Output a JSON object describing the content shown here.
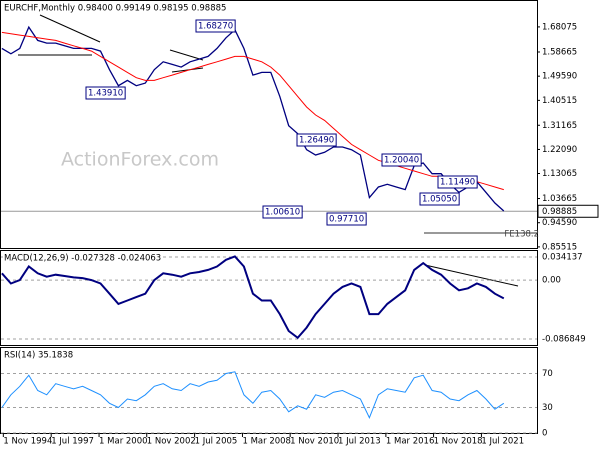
{
  "chart_data": [
    {
      "type": "line",
      "title": "EURCHF,Monthly 0.98400 0.99149 0.98195 0.98885",
      "watermark": "ActionForex.com",
      "x": [
        1994.75,
        1995.25,
        1995.75,
        1996.25,
        1996.75,
        1997.25,
        1997.75,
        1998.25,
        1998.75,
        1999.25,
        1999.75,
        2000.25,
        2000.75,
        2001.25,
        2001.75,
        2002.25,
        2002.75,
        2003.25,
        2003.75,
        2004.25,
        2004.75,
        2005.25,
        2005.75,
        2006.25,
        2006.75,
        2007.25,
        2007.75,
        2008.25,
        2008.75,
        2009.25,
        2009.75,
        2010.25,
        2010.75,
        2011.25,
        2011.75,
        2012.25,
        2012.75,
        2013.25,
        2013.75,
        2014.25,
        2014.75,
        2015.25,
        2015.75,
        2016.25,
        2016.75,
        2017.25,
        2017.75,
        2018.25,
        2018.75,
        2019.25,
        2019.75,
        2020.25,
        2020.75,
        2021.25,
        2021.75,
        2022.25,
        2022.75
      ],
      "xlim": [
        1994.7,
        2024.6
      ],
      "ylim": [
        0.851,
        1.778
      ],
      "yticks": [
        1.68075,
        1.58665,
        {
          "value": 1.4959,
          "label": "1.49590"
        },
        1.40515,
        1.31165,
        {
          "value": 1.2209,
          "label": "1.22090"
        },
        1.13065,
        1.03665,
        {
          "value": 0.9459,
          "label": "0.94590"
        },
        0.85515
      ],
      "grid": false,
      "last_price": 0.98885,
      "annotations": [
        "1.68270",
        "1.43910",
        "1.26490",
        "1.00610",
        "0.97710",
        "1.20040",
        "1.11490",
        "1.05050",
        "FE138.2"
      ],
      "series": [
        {
          "color": "#000080",
          "values": [
            1.6,
            1.58,
            1.6,
            1.68,
            1.63,
            1.62,
            1.62,
            1.61,
            1.6,
            1.6,
            1.6,
            1.59,
            1.52,
            1.46,
            1.48,
            1.46,
            1.47,
            1.52,
            1.55,
            1.54,
            1.53,
            1.55,
            1.56,
            1.57,
            1.6,
            1.64,
            1.67,
            1.6,
            1.5,
            1.51,
            1.51,
            1.42,
            1.31,
            1.28,
            1.22,
            1.2,
            1.21,
            1.23,
            1.23,
            1.22,
            1.2,
            1.04,
            1.08,
            1.09,
            1.08,
            1.07,
            1.16,
            1.17,
            1.13,
            1.13,
            1.09,
            1.06,
            1.08,
            1.1,
            1.06,
            1.02,
            0.99
          ]
        },
        {
          "color": "#ff0000",
          "values": [
            1.66,
            1.655,
            1.65,
            1.645,
            1.64,
            1.635,
            1.63,
            1.62,
            1.61,
            1.6,
            1.59,
            1.57,
            1.55,
            1.53,
            1.51,
            1.49,
            1.48,
            1.48,
            1.49,
            1.5,
            1.51,
            1.52,
            1.53,
            1.54,
            1.55,
            1.56,
            1.57,
            1.57,
            1.56,
            1.55,
            1.53,
            1.5,
            1.46,
            1.42,
            1.38,
            1.35,
            1.33,
            1.3,
            1.27,
            1.24,
            1.22,
            1.2,
            1.18,
            1.17,
            1.16,
            1.15,
            1.14,
            1.13,
            1.12,
            1.12,
            1.11,
            1.11,
            1.1,
            1.1,
            1.09,
            1.08,
            1.07
          ]
        }
      ]
    },
    {
      "type": "line",
      "title": "MACD(12,26,9) -0.027328 -0.024063",
      "x": [
        1994.75,
        1995.25,
        1995.75,
        1996.25,
        1996.75,
        1997.25,
        1997.75,
        1998.25,
        1998.75,
        1999.25,
        1999.75,
        2000.25,
        2000.75,
        2001.25,
        2001.75,
        2002.25,
        2002.75,
        2003.25,
        2003.75,
        2004.25,
        2004.75,
        2005.25,
        2005.75,
        2006.25,
        2006.75,
        2007.25,
        2007.75,
        2008.25,
        2008.75,
        2009.25,
        2009.75,
        2010.25,
        2010.75,
        2011.25,
        2011.75,
        2012.25,
        2012.75,
        2013.25,
        2013.75,
        2014.25,
        2014.75,
        2015.25,
        2015.75,
        2016.25,
        2016.75,
        2017.25,
        2017.75,
        2018.25,
        2018.75,
        2019.25,
        2019.75,
        2020.25,
        2020.75,
        2021.25,
        2021.75,
        2022.25,
        2022.75
      ],
      "xlim": [
        1994.7,
        2024.6
      ],
      "ylim": [
        -0.0956,
        0.0429
      ],
      "yticks": [
        0.034137,
        {
          "value": 0,
          "label": "0.00"
        },
        -0.086849
      ],
      "grid": true,
      "series": [
        {
          "color": "#000080",
          "values": [
            0.01,
            -0.005,
            0,
            0.02,
            0.01,
            0.005,
            0.008,
            0.006,
            0.004,
            0.003,
            0,
            -0.005,
            -0.02,
            -0.035,
            -0.03,
            -0.025,
            -0.02,
            0,
            0.01,
            0.008,
            0.005,
            0.01,
            0.012,
            0.015,
            0.02,
            0.03,
            0.035,
            0.02,
            -0.02,
            -0.03,
            -0.03,
            -0.05,
            -0.075,
            -0.085,
            -0.07,
            -0.05,
            -0.035,
            -0.02,
            -0.01,
            -0.005,
            -0.01,
            -0.05,
            -0.05,
            -0.035,
            -0.025,
            -0.015,
            0.015,
            0.025,
            0.015,
            0.008,
            -0.005,
            -0.015,
            -0.012,
            -0.005,
            -0.01,
            -0.02,
            -0.027
          ]
        }
      ]
    },
    {
      "type": "line",
      "title": "RSI(14) 35.1838",
      "x": [
        1994.75,
        1995.25,
        1995.75,
        1996.25,
        1996.75,
        1997.25,
        1997.75,
        1998.25,
        1998.75,
        1999.25,
        1999.75,
        2000.25,
        2000.75,
        2001.25,
        2001.75,
        2002.25,
        2002.75,
        2003.25,
        2003.75,
        2004.25,
        2004.75,
        2005.25,
        2005.75,
        2006.25,
        2006.75,
        2007.25,
        2007.75,
        2008.25,
        2008.75,
        2009.25,
        2009.75,
        2010.25,
        2010.75,
        2011.25,
        2011.75,
        2012.25,
        2012.75,
        2013.25,
        2013.75,
        2014.25,
        2014.75,
        2015.25,
        2015.75,
        2016.25,
        2016.75,
        2017.25,
        2017.75,
        2018.25,
        2018.75,
        2019.25,
        2019.75,
        2020.25,
        2020.75,
        2021.25,
        2021.75,
        2022.25,
        2022.75
      ],
      "xlim": [
        1994.7,
        2024.6
      ],
      "ylim": [
        0,
        100
      ],
      "yticks": [
        70,
        30,
        0
      ],
      "grid": true,
      "xticks": [
        {
          "value": 1994.83,
          "label": "1 Nov 1994"
        },
        {
          "value": 1997.5,
          "label": "1 Jul 1997"
        },
        {
          "value": 2000.17,
          "label": "1 Mar 2000"
        },
        {
          "value": 2002.83,
          "label": "1 Nov 2002"
        },
        {
          "value": 2005.5,
          "label": "1 Jul 2005"
        },
        {
          "value": 2008.17,
          "label": "1 Mar 2008"
        },
        {
          "value": 2010.83,
          "label": "1 Nov 2010"
        },
        {
          "value": 2013.5,
          "label": "1 Jul 2013"
        },
        {
          "value": 2016.17,
          "label": "1 Mar 2016"
        },
        {
          "value": 2018.83,
          "label": "1 Nov 2018"
        },
        {
          "value": 2021.5,
          "label": "1 Jul 2021"
        }
      ],
      "series": [
        {
          "color": "#1e90ff",
          "values": [
            30,
            45,
            55,
            68,
            50,
            45,
            58,
            55,
            52,
            55,
            50,
            45,
            35,
            30,
            40,
            38,
            45,
            55,
            58,
            52,
            50,
            58,
            55,
            60,
            62,
            70,
            72,
            45,
            35,
            48,
            50,
            40,
            25,
            32,
            28,
            45,
            42,
            48,
            50,
            45,
            40,
            18,
            45,
            52,
            50,
            48,
            65,
            68,
            50,
            48,
            40,
            38,
            45,
            50,
            40,
            28,
            35
          ]
        }
      ]
    }
  ]
}
